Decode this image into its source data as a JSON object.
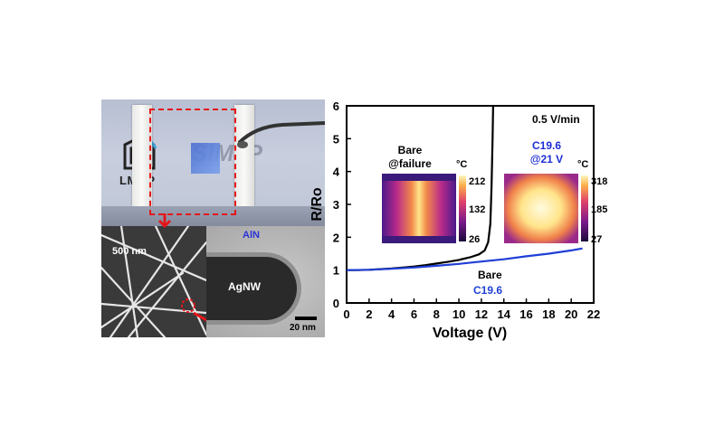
{
  "photo": {
    "logo_lmgp": "LMGP",
    "logo_simap": "SIMaP",
    "sem_scale": "500 nm",
    "tem_coating": "AlN",
    "tem_core": "AgNW",
    "tem_scale": "20 nm"
  },
  "insets": [
    {
      "title_line1": "Bare",
      "title_line2": "@failure",
      "unit": "°C",
      "ticks": [
        "212",
        "132",
        "26"
      ],
      "title_color": "#000000"
    },
    {
      "title_line1": "C19.6",
      "title_line2": "@21 V",
      "unit": "°C",
      "ticks": [
        "318",
        "185",
        "27"
      ],
      "title_color": "#1f2ed6"
    }
  ],
  "chart_data": {
    "type": "line",
    "xlabel": "Voltage (V)",
    "ylabel": "R/Ro",
    "xlim": [
      0,
      22
    ],
    "ylim": [
      0,
      6
    ],
    "xticks": [
      "0",
      "2",
      "4",
      "6",
      "8",
      "10",
      "12",
      "14",
      "16",
      "18",
      "20",
      "22"
    ],
    "yticks": [
      "0",
      "1",
      "2",
      "3",
      "4",
      "5",
      "6"
    ],
    "annotation": "0.5 V/min",
    "series": [
      {
        "name": "Bare",
        "color": "#000000",
        "x": [
          0,
          1,
          2,
          3,
          4,
          5,
          6,
          7,
          8,
          9,
          10,
          11,
          11.8,
          12.3,
          12.6,
          12.8,
          12.9,
          13.0,
          13.05
        ],
        "y": [
          1.0,
          1.0,
          1.01,
          1.03,
          1.05,
          1.08,
          1.11,
          1.15,
          1.2,
          1.25,
          1.31,
          1.39,
          1.48,
          1.6,
          1.85,
          2.4,
          3.5,
          5.0,
          6.0
        ]
      },
      {
        "name": "C19.6",
        "color": "#1f3fd6",
        "x": [
          0,
          2,
          4,
          6,
          8,
          10,
          12,
          14,
          16,
          18,
          20,
          21
        ],
        "y": [
          1.0,
          1.01,
          1.04,
          1.08,
          1.13,
          1.19,
          1.26,
          1.33,
          1.42,
          1.5,
          1.6,
          1.66
        ]
      }
    ]
  }
}
